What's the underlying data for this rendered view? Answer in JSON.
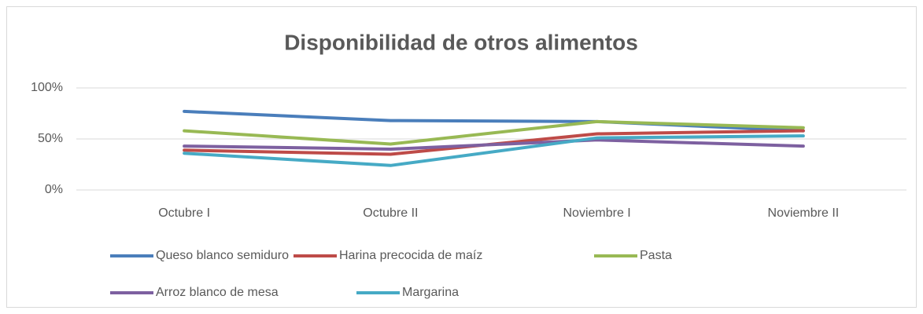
{
  "chart_data": {
    "type": "line",
    "title": "Disponibilidad de otros alimentos",
    "categories": [
      "Octubre I",
      "Octubre II",
      "Noviembre I",
      "Noviembre II"
    ],
    "series": [
      {
        "name": "Queso blanco semiduro",
        "color": "#4a7ebb",
        "values": [
          77,
          68,
          67,
          58
        ]
      },
      {
        "name": "Harina precocida de maíz",
        "color": "#be4b48",
        "values": [
          39,
          35,
          55,
          58
        ]
      },
      {
        "name": "Pasta",
        "color": "#98b954",
        "values": [
          58,
          45,
          67,
          61
        ]
      },
      {
        "name": "Arroz blanco de mesa",
        "color": "#7d60a0",
        "values": [
          43,
          40,
          49,
          43
        ]
      },
      {
        "name": "Margarina",
        "color": "#46aac5",
        "values": [
          36,
          24,
          51,
          53
        ]
      }
    ],
    "ylim": [
      0,
      100
    ],
    "yticks": [
      {
        "value": 0,
        "label": "0%"
      },
      {
        "value": 50,
        "label": "50%"
      },
      {
        "value": 100,
        "label": "100%"
      }
    ],
    "grid": true
  }
}
